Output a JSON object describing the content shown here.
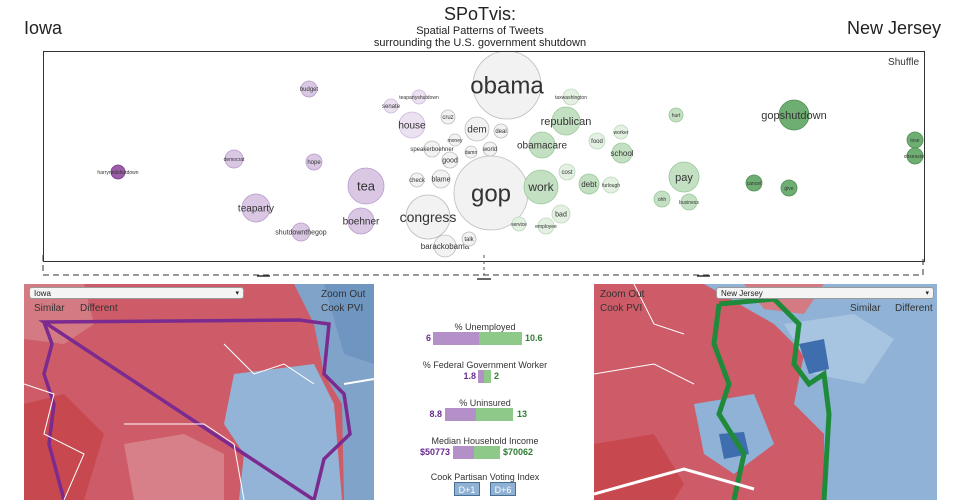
{
  "header": {
    "state_left": "Iowa",
    "state_right": "New Jersey",
    "title": "SPoTvis:",
    "subtitle_line1": "Spatial Patterns of Tweets",
    "subtitle_line2": "surrounding the U.S. government shutdown"
  },
  "bubble_panel": {
    "shuffle_label": "Shuffle"
  },
  "words": [
    {
      "text": "obama",
      "r": 34,
      "size": 24,
      "side": "neutral"
    },
    {
      "text": "gop",
      "r": 37,
      "size": 24,
      "side": "neutral"
    },
    {
      "text": "congress",
      "r": 22,
      "size": 14,
      "side": "neutral"
    },
    {
      "text": "republican",
      "r": 14,
      "size": 11,
      "side": "green"
    },
    {
      "text": "obamacare",
      "r": 13,
      "size": 10,
      "side": "green"
    },
    {
      "text": "work",
      "r": 17,
      "size": 12,
      "side": "green"
    },
    {
      "text": "gopshutdown",
      "r": 15,
      "size": 11,
      "side": "green-dark"
    },
    {
      "text": "pay",
      "r": 15,
      "size": 11,
      "side": "green"
    },
    {
      "text": "school",
      "r": 10,
      "size": 8,
      "side": "green"
    },
    {
      "text": "debt",
      "r": 10,
      "size": 8,
      "side": "green"
    },
    {
      "text": "tea",
      "r": 18,
      "size": 13,
      "side": "purple"
    },
    {
      "text": "boehner",
      "r": 13,
      "size": 10,
      "side": "purple"
    },
    {
      "text": "teaparty",
      "r": 14,
      "size": 10,
      "side": "purple"
    },
    {
      "text": "house",
      "r": 13,
      "size": 10,
      "side": "purple-light"
    },
    {
      "text": "dem",
      "r": 12,
      "size": 10,
      "side": "neutral"
    },
    {
      "text": "barackobama",
      "r": 11,
      "size": 8,
      "side": "neutral"
    },
    {
      "text": "budget",
      "r": 8,
      "size": 6,
      "side": "purple"
    },
    {
      "text": "senate",
      "r": 7,
      "size": 6,
      "side": "purple-light"
    },
    {
      "text": "teapartyshutdown",
      "r": 7,
      "size": 5,
      "side": "purple-light"
    },
    {
      "text": "cruz",
      "r": 7,
      "size": 6,
      "side": "neutral"
    },
    {
      "text": "speakerboehner",
      "r": 8,
      "size": 6,
      "side": "neutral"
    },
    {
      "text": "money",
      "r": 6,
      "size": 5,
      "side": "neutral"
    },
    {
      "text": "deal",
      "r": 7,
      "size": 6,
      "side": "neutral"
    },
    {
      "text": "world",
      "r": 7,
      "size": 6,
      "side": "neutral"
    },
    {
      "text": "damn",
      "r": 6,
      "size": 5,
      "side": "neutral"
    },
    {
      "text": "good",
      "r": 8,
      "size": 7,
      "side": "neutral"
    },
    {
      "text": "check",
      "r": 7,
      "size": 6,
      "side": "neutral"
    },
    {
      "text": "blame",
      "r": 9,
      "size": 7,
      "side": "neutral"
    },
    {
      "text": "talk",
      "r": 7,
      "size": 6,
      "side": "neutral"
    },
    {
      "text": "hope",
      "r": 8,
      "size": 6,
      "side": "purple"
    },
    {
      "text": "democrat",
      "r": 9,
      "size": 5,
      "side": "purple"
    },
    {
      "text": "shutdownthegop",
      "r": 9,
      "size": 7,
      "side": "purple"
    },
    {
      "text": "harryreidshutdown",
      "r": 7,
      "size": 5,
      "side": "purple-dark"
    },
    {
      "text": "taxwashington",
      "r": 8,
      "size": 5,
      "side": "green-light"
    },
    {
      "text": "food",
      "r": 8,
      "size": 6,
      "side": "green-light"
    },
    {
      "text": "worker",
      "r": 7,
      "size": 5,
      "side": "green-light"
    },
    {
      "text": "hurt",
      "r": 7,
      "size": 5,
      "side": "green"
    },
    {
      "text": "cost",
      "r": 8,
      "size": 6,
      "side": "green-light"
    },
    {
      "text": "furlough",
      "r": 8,
      "size": 5,
      "side": "green-light"
    },
    {
      "text": "bad",
      "r": 9,
      "size": 7,
      "side": "green-light"
    },
    {
      "text": "service",
      "r": 7,
      "size": 5,
      "side": "green-light"
    },
    {
      "text": "employee",
      "r": 8,
      "size": 5,
      "side": "green-light"
    },
    {
      "text": "ohh",
      "r": 8,
      "size": 5,
      "side": "green"
    },
    {
      "text": "business",
      "r": 8,
      "size": 5,
      "side": "green"
    },
    {
      "text": "cancel",
      "r": 8,
      "size": 5,
      "side": "green-dark"
    },
    {
      "text": "give",
      "r": 8,
      "size": 5,
      "side": "green-dark"
    },
    {
      "text": "lose",
      "r": 8,
      "size": 5,
      "side": "green-dark"
    },
    {
      "text": "obsession",
      "r": 8,
      "size": 5,
      "side": "green-dark"
    }
  ],
  "map_left": {
    "select_value": "Iowa",
    "similar_label": "Similar",
    "different_label": "Different",
    "zoom_out_label": "Zoom Out",
    "cook_pvi_label": "Cook PVI"
  },
  "map_right": {
    "select_value": "New Jersey",
    "similar_label": "Similar",
    "different_label": "Different",
    "zoom_out_label": "Zoom Out",
    "cook_pvi_label": "Cook PVI"
  },
  "stats": {
    "unemployed": {
      "label": "% Unemployed",
      "left": "6",
      "right": "10.6"
    },
    "federal": {
      "label": "% Federal Government Worker",
      "left": "1.8",
      "right": "2"
    },
    "uninsured": {
      "label": "% Uninsured",
      "left": "8.8",
      "right": "13"
    },
    "income": {
      "label": "Median Household Income",
      "left": "$50773",
      "right": "$70062"
    },
    "pvi": {
      "label": "Cook Partisan Voting Index",
      "left": "D+1",
      "right": "D+6"
    }
  },
  "colors": {
    "purple": "#d9c7e4",
    "purple-light": "#ebe1f1",
    "purple-dark": "#9b5da8",
    "green": "#c4e0c3",
    "green-light": "#e3f0e2",
    "green-dark": "#6fae72",
    "neutral": "#f2f2f2",
    "map_red": "#cd5c68",
    "map_blue": "#8fb2d6"
  }
}
